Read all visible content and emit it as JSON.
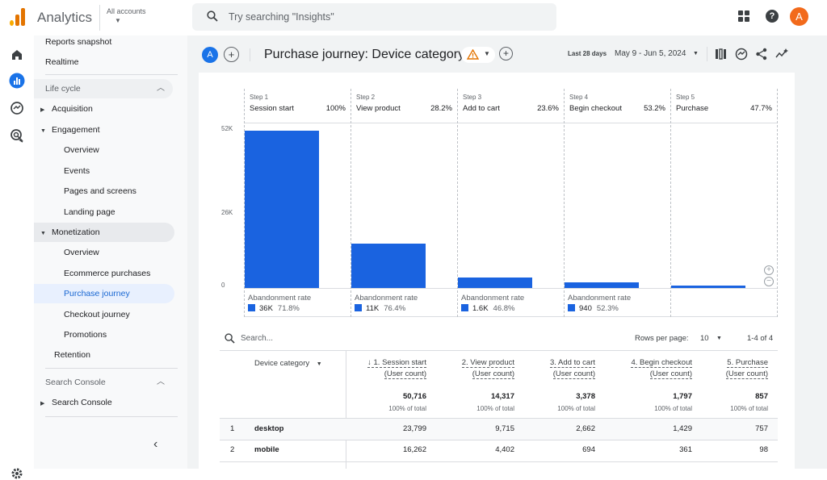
{
  "app": {
    "title": "Analytics",
    "account_label": "All accounts",
    "avatar_letter": "A"
  },
  "search": {
    "placeholder": "Try searching \"Insights\""
  },
  "sidebar": {
    "items": [
      {
        "label": "Reports snapshot"
      },
      {
        "label": "Realtime"
      },
      {
        "label": "Life cycle"
      },
      {
        "label": "Acquisition"
      },
      {
        "label": "Engagement"
      },
      {
        "label": "Overview"
      },
      {
        "label": "Events"
      },
      {
        "label": "Pages and screens"
      },
      {
        "label": "Landing page"
      },
      {
        "label": "Monetization"
      },
      {
        "label": "Overview"
      },
      {
        "label": "Ecommerce purchases"
      },
      {
        "label": "Purchase journey"
      },
      {
        "label": "Checkout journey"
      },
      {
        "label": "Promotions"
      },
      {
        "label": "Retention"
      },
      {
        "label": "Search Console"
      },
      {
        "label": "Search Console"
      }
    ]
  },
  "header": {
    "avatar": "A",
    "plus": "+",
    "title": "Purchase journey: Device category",
    "date_label": "Last 28 days",
    "date_range": "May 9 - Jun 5, 2024"
  },
  "funnel": {
    "steps": [
      {
        "step": "Step 1",
        "name": "Session start",
        "pct": "100%",
        "value": 50716
      },
      {
        "step": "Step 2",
        "name": "View product",
        "pct": "28.2%",
        "value": 14317
      },
      {
        "step": "Step 3",
        "name": "Add to cart",
        "pct": "23.6%",
        "value": 3378
      },
      {
        "step": "Step 4",
        "name": "Begin checkout",
        "pct": "53.2%",
        "value": 1797
      },
      {
        "step": "Step 5",
        "name": "Purchase",
        "pct": "47.7%",
        "value": 857
      }
    ],
    "y_ticks": [
      "52K",
      "26K",
      "0"
    ],
    "y_max": 52000,
    "abandonment_label": "Abandonment rate",
    "abandonment": [
      {
        "count": "36K",
        "rate": "71.8%"
      },
      {
        "count": "11K",
        "rate": "76.4%"
      },
      {
        "count": "1.6K",
        "rate": "46.8%"
      },
      {
        "count": "940",
        "rate": "52.3%"
      }
    ]
  },
  "table": {
    "search_placeholder": "Search...",
    "rows_per_page_label": "Rows per page:",
    "rows_per_page": "10",
    "range": "1-4 of 4",
    "dim_header": "Device category",
    "columns": [
      {
        "line1": "↓ 1. Session start",
        "line2": "(User count)",
        "total": "50,716",
        "total_pct": "100% of total"
      },
      {
        "line1": "2. View product",
        "line2": "(User count)",
        "total": "14,317",
        "total_pct": "100% of total"
      },
      {
        "line1": "3. Add to cart",
        "line2": "(User count)",
        "total": "3,378",
        "total_pct": "100% of total"
      },
      {
        "line1": "4. Begin checkout",
        "line2": "(User count)",
        "total": "1,797",
        "total_pct": "100% of total"
      },
      {
        "line1": "5. Purchase",
        "line2": "(User count)",
        "total": "857",
        "total_pct": "100% of total"
      }
    ],
    "rows": [
      {
        "idx": "1",
        "device": "desktop",
        "v": [
          "23,799",
          "9,715",
          "2,662",
          "1,429",
          "757"
        ]
      },
      {
        "idx": "2",
        "device": "mobile",
        "v": [
          "16,262",
          "4,402",
          "694",
          "361",
          "98"
        ]
      }
    ]
  },
  "colors": {
    "accent": "#1a73e8",
    "bar": "#1a63e0",
    "avatar": "#f26a1b",
    "active_nav": "#e8f0fe"
  }
}
